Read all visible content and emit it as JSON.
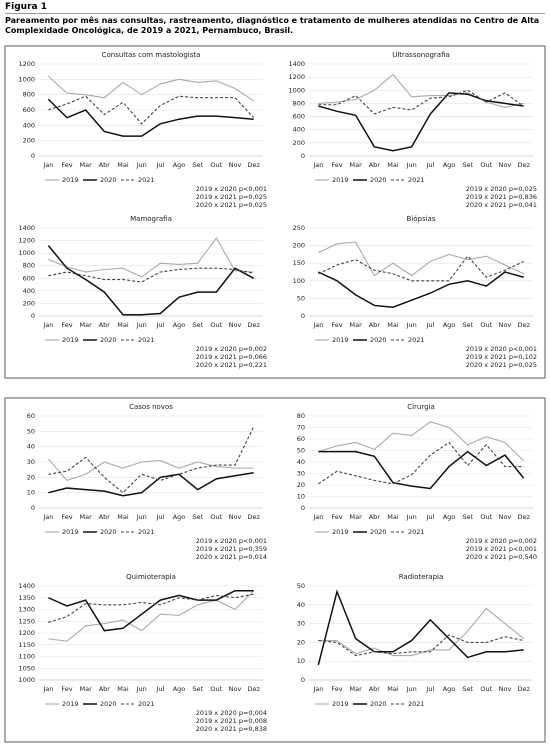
{
  "figure": {
    "label": "Figura 1",
    "caption": "Pareamento por mês nas consultas, rastreamento, diagnóstico e tratamento de mulheres atendidas no Centro de Alta Complexidade Oncológica, de 2019 a 2021, Pernambuco, Brasil."
  },
  "chart_data": [
    {
      "type": "line",
      "title": "Consultas com mastologista",
      "categories": [
        "Jan",
        "Fev",
        "Mar",
        "Abr",
        "Mai",
        "Jun",
        "Jul",
        "Ago",
        "Set",
        "Out",
        "Nov",
        "Dez"
      ],
      "ylim": [
        0,
        1200
      ],
      "yticks": [
        0,
        200,
        400,
        600,
        800,
        1000,
        1200
      ],
      "grid": true,
      "series": [
        {
          "name": "2019",
          "color": "#aaaaaa",
          "line_style": "solid",
          "values": [
            1040,
            820,
            800,
            760,
            960,
            800,
            940,
            1000,
            960,
            980,
            880,
            720
          ]
        },
        {
          "name": "2020",
          "color": "#111111",
          "line_style": "solid",
          "values": [
            740,
            500,
            600,
            320,
            260,
            260,
            420,
            480,
            520,
            520,
            500,
            480
          ]
        },
        {
          "name": "2021",
          "color": "#444444",
          "line_style": "dashed",
          "values": [
            600,
            680,
            780,
            540,
            700,
            420,
            660,
            780,
            760,
            760,
            760,
            500
          ]
        }
      ],
      "annotations": [
        "2019 x 2020 p<0,001",
        "2019 x 2021 p=0,025",
        "2020 x 2021 p=0,025"
      ]
    },
    {
      "type": "line",
      "title": "Ultrassonografia",
      "categories": [
        "Jan",
        "Fev",
        "Mar",
        "Abr",
        "Mai",
        "Jun",
        "Jul",
        "Ago",
        "Set",
        "Out",
        "Nov",
        "Dez"
      ],
      "ylim": [
        0,
        1400
      ],
      "yticks": [
        0,
        200,
        400,
        600,
        800,
        1000,
        1200,
        1400
      ],
      "grid": true,
      "series": [
        {
          "name": "2019",
          "color": "#aaaaaa",
          "line_style": "solid",
          "values": [
            800,
            820,
            860,
            1000,
            1240,
            900,
            920,
            920,
            960,
            820,
            740,
            800
          ]
        },
        {
          "name": "2020",
          "color": "#111111",
          "line_style": "solid",
          "values": [
            760,
            680,
            620,
            140,
            80,
            140,
            640,
            960,
            940,
            840,
            800,
            760
          ]
        },
        {
          "name": "2021",
          "color": "#444444",
          "line_style": "dashed",
          "values": [
            780,
            780,
            920,
            640,
            740,
            700,
            880,
            900,
            1000,
            820,
            960,
            760
          ]
        }
      ],
      "annotations": [
        "2019 x 2020 p=0,025",
        "2019 x 2021 p=0,836",
        "2020 x 2021 p=0,041"
      ]
    },
    {
      "type": "line",
      "title": "Mamografia",
      "categories": [
        "Jan",
        "Fev",
        "Mar",
        "Abr",
        "Mai",
        "Jun",
        "Jul",
        "Ago",
        "Set",
        "Out",
        "Nov",
        "Dez"
      ],
      "ylim": [
        0,
        1400
      ],
      "yticks": [
        0,
        200,
        400,
        600,
        800,
        1000,
        1200,
        1400
      ],
      "grid": true,
      "series": [
        {
          "name": "2019",
          "color": "#aaaaaa",
          "line_style": "solid",
          "values": [
            900,
            780,
            700,
            740,
            760,
            620,
            840,
            820,
            840,
            1240,
            720,
            700
          ]
        },
        {
          "name": "2020",
          "color": "#111111",
          "line_style": "solid",
          "values": [
            1120,
            760,
            580,
            380,
            20,
            20,
            40,
            300,
            380,
            380,
            760,
            600
          ]
        },
        {
          "name": "2021",
          "color": "#444444",
          "line_style": "dashed",
          "values": [
            640,
            700,
            640,
            580,
            580,
            540,
            700,
            740,
            760,
            760,
            740,
            680
          ]
        }
      ],
      "annotations": [
        "2019 x 2020 p=0,002",
        "2019 x 2021 p=0,066",
        "2020 x 2021 p=0,221"
      ]
    },
    {
      "type": "line",
      "title": "Biópsias",
      "categories": [
        "Jan",
        "Fev",
        "Mar",
        "Abr",
        "Mai",
        "Jun",
        "Jul",
        "Ago",
        "Set",
        "Out",
        "Nov",
        "Dez"
      ],
      "ylim": [
        0,
        250
      ],
      "yticks": [
        0,
        50,
        100,
        150,
        200,
        250
      ],
      "grid": true,
      "series": [
        {
          "name": "2019",
          "color": "#aaaaaa",
          "line_style": "solid",
          "values": [
            180,
            205,
            210,
            115,
            150,
            115,
            155,
            175,
            160,
            170,
            145,
            120
          ]
        },
        {
          "name": "2020",
          "color": "#111111",
          "line_style": "solid",
          "values": [
            125,
            100,
            60,
            30,
            25,
            45,
            65,
            90,
            100,
            85,
            125,
            110
          ]
        },
        {
          "name": "2021",
          "color": "#444444",
          "line_style": "dashed",
          "values": [
            120,
            145,
            160,
            130,
            120,
            100,
            100,
            100,
            170,
            110,
            130,
            155
          ]
        }
      ],
      "annotations": [
        "2019 x 2020 p<0,001",
        "2019 x 2021 p=0,102",
        "2020 x 2021 p=0,025"
      ]
    },
    {
      "type": "line",
      "title": "Casos novos",
      "categories": [
        "Jan",
        "Fev",
        "Mar",
        "Abr",
        "Mai",
        "Jun",
        "Jul",
        "Ago",
        "Set",
        "Out",
        "Nov",
        "Dez"
      ],
      "ylim": [
        0,
        60
      ],
      "yticks": [
        0,
        10,
        20,
        30,
        40,
        50,
        60
      ],
      "grid": true,
      "series": [
        {
          "name": "2019",
          "color": "#aaaaaa",
          "line_style": "solid",
          "values": [
            32,
            18,
            22,
            30,
            26,
            30,
            31,
            26,
            30,
            27,
            26,
            26
          ]
        },
        {
          "name": "2020",
          "color": "#111111",
          "line_style": "solid",
          "values": [
            10,
            13,
            12,
            11,
            8,
            10,
            20,
            22,
            12,
            19,
            21,
            23
          ]
        },
        {
          "name": "2021",
          "color": "#444444",
          "line_style": "dashed",
          "values": [
            22,
            24,
            33,
            20,
            10,
            22,
            18,
            22,
            26,
            28,
            28,
            53
          ]
        }
      ],
      "annotations": [
        "2019 x 2020 p<0,001",
        "2019 x 2021 p=0,359",
        "2020 x 2021 p=0,014"
      ]
    },
    {
      "type": "line",
      "title": "Cirurgia",
      "categories": [
        "Jan",
        "Fev",
        "Mar",
        "Abr",
        "Mai",
        "Jun",
        "Jul",
        "Ago",
        "Set",
        "Out",
        "Nov",
        "Dez"
      ],
      "ylim": [
        0,
        80
      ],
      "yticks": [
        0,
        10,
        20,
        30,
        40,
        50,
        60,
        70,
        80
      ],
      "grid": true,
      "series": [
        {
          "name": "2019",
          "color": "#aaaaaa",
          "line_style": "solid",
          "values": [
            49,
            54,
            57,
            51,
            65,
            63,
            75,
            70,
            55,
            62,
            57,
            41
          ]
        },
        {
          "name": "2020",
          "color": "#111111",
          "line_style": "solid",
          "values": [
            49,
            49,
            49,
            45,
            22,
            19,
            17,
            36,
            49,
            37,
            46,
            26
          ]
        },
        {
          "name": "2021",
          "color": "#444444",
          "line_style": "dashed",
          "values": [
            21,
            32,
            28,
            24,
            21,
            29,
            46,
            57,
            37,
            55,
            36,
            36
          ]
        }
      ],
      "annotations": [
        "2019 x 2020 p=0,002",
        "2019 x 2021 p<0,001",
        "2020 x 2021 p=0,540"
      ]
    },
    {
      "type": "line",
      "title": "Quimioterapia",
      "categories": [
        "Jan",
        "Fev",
        "Mar",
        "Abr",
        "Mai",
        "Jun",
        "Jul",
        "Ago",
        "Set",
        "Out",
        "Nov",
        "Dez"
      ],
      "ylim": [
        1000,
        1400
      ],
      "yticks": [
        1000,
        1050,
        1100,
        1150,
        1200,
        1250,
        1300,
        1350,
        1400
      ],
      "grid": true,
      "series": [
        {
          "name": "2019",
          "color": "#aaaaaa",
          "line_style": "solid",
          "values": [
            1175,
            1165,
            1230,
            1240,
            1255,
            1210,
            1280,
            1275,
            1320,
            1340,
            1300,
            1380
          ]
        },
        {
          "name": "2020",
          "color": "#111111",
          "line_style": "solid",
          "values": [
            1350,
            1315,
            1340,
            1210,
            1220,
            1280,
            1340,
            1360,
            1340,
            1340,
            1380,
            1380
          ]
        },
        {
          "name": "2021",
          "color": "#444444",
          "line_style": "dashed",
          "values": [
            1245,
            1270,
            1325,
            1320,
            1320,
            1330,
            1320,
            1350,
            1340,
            1360,
            1350,
            1365
          ]
        }
      ],
      "annotations": [
        "2019 x 2020 p=0,004",
        "2019 x 2021 p=0,008",
        "2020 x 2021 p=0,838"
      ]
    },
    {
      "type": "line",
      "title": "Radioterapia",
      "categories": [
        "Jan",
        "Fev",
        "Mar",
        "Abr",
        "Mai",
        "Jun",
        "Jul",
        "Ago",
        "Set",
        "Out",
        "Nov",
        "Dez"
      ],
      "ylim": [
        0,
        50
      ],
      "yticks": [
        0,
        10,
        20,
        30,
        40,
        50
      ],
      "grid": true,
      "series": [
        {
          "name": "2019",
          "color": "#aaaaaa",
          "line_style": "solid",
          "values": [
            21,
            21,
            14,
            17,
            13,
            13,
            16,
            16,
            26,
            38,
            30,
            22
          ]
        },
        {
          "name": "2020",
          "color": "#111111",
          "line_style": "solid",
          "values": [
            8,
            47,
            22,
            15,
            15,
            21,
            32,
            22,
            12,
            15,
            15,
            16
          ]
        },
        {
          "name": "2021",
          "color": "#444444",
          "line_style": "dashed",
          "values": [
            21,
            20,
            13,
            15,
            14,
            15,
            15,
            24,
            20,
            20,
            23,
            21
          ]
        }
      ],
      "annotations": []
    }
  ]
}
